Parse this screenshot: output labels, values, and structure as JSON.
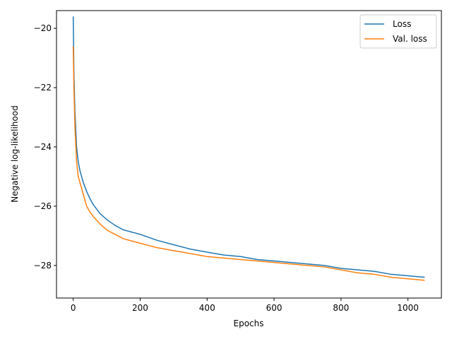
{
  "chart_data": {
    "type": "line",
    "xlabel": "Epochs",
    "ylabel": "Negative log-likelihood",
    "xlim": [
      -50,
      1100
    ],
    "ylim": [
      -29.1,
      -19.4
    ],
    "xticks": [
      0,
      200,
      400,
      600,
      800,
      1000
    ],
    "yticks": [
      -28,
      -26,
      -24,
      -22,
      -20
    ],
    "grid": false,
    "legend_position": "top-right",
    "series": [
      {
        "name": "Loss",
        "color": "#1f77b4",
        "x": [
          0,
          2,
          5,
          10,
          15,
          20,
          30,
          40,
          50,
          60,
          80,
          100,
          125,
          150,
          200,
          250,
          300,
          350,
          400,
          450,
          500,
          550,
          600,
          650,
          700,
          750,
          800,
          850,
          900,
          950,
          1000,
          1050
        ],
        "y": [
          -19.6,
          -21.5,
          -22.8,
          -24.0,
          -24.5,
          -24.8,
          -25.2,
          -25.5,
          -25.75,
          -25.95,
          -26.25,
          -26.45,
          -26.65,
          -26.8,
          -26.95,
          -27.15,
          -27.3,
          -27.45,
          -27.55,
          -27.65,
          -27.7,
          -27.8,
          -27.85,
          -27.9,
          -27.95,
          -28.0,
          -28.1,
          -28.15,
          -28.2,
          -28.3,
          -28.35,
          -28.4
        ]
      },
      {
        "name": "Val. loss",
        "color": "#ff7f0e",
        "x": [
          0,
          2,
          5,
          10,
          15,
          20,
          30,
          40,
          50,
          60,
          80,
          100,
          125,
          150,
          200,
          250,
          300,
          350,
          400,
          450,
          500,
          550,
          600,
          650,
          700,
          750,
          800,
          850,
          900,
          950,
          1000,
          1050
        ],
        "y": [
          -20.6,
          -22.0,
          -23.3,
          -24.5,
          -25.0,
          -25.2,
          -25.6,
          -26.0,
          -26.2,
          -26.35,
          -26.6,
          -26.8,
          -26.95,
          -27.1,
          -27.25,
          -27.4,
          -27.5,
          -27.6,
          -27.7,
          -27.75,
          -27.8,
          -27.85,
          -27.9,
          -27.95,
          -28.0,
          -28.05,
          -28.15,
          -28.25,
          -28.3,
          -28.4,
          -28.45,
          -28.5
        ]
      }
    ]
  }
}
